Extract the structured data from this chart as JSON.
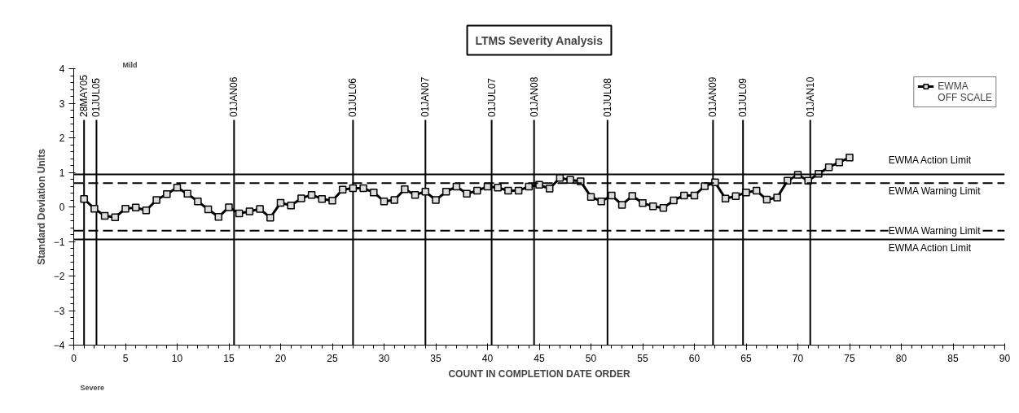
{
  "chart_data": {
    "type": "line",
    "title": "LTMS Severity Analysis",
    "xlabel": "COUNT IN COMPLETION DATE ORDER",
    "ylabel": "Standard Deviation Units",
    "xlim": [
      0,
      90
    ],
    "xticks": [
      0,
      5,
      10,
      15,
      20,
      25,
      30,
      35,
      40,
      45,
      50,
      55,
      60,
      65,
      70,
      75,
      80,
      85,
      90
    ],
    "ylim": [
      -4,
      4
    ],
    "yticks": [
      -4,
      -3,
      -2,
      -1,
      0,
      1,
      2,
      3,
      4
    ],
    "grid": false,
    "legend": "top right",
    "line_style": "solid",
    "series": [
      {
        "name": "EWMA",
        "color": "#000000",
        "marker": "square",
        "x": [
          1,
          2,
          3,
          4,
          5,
          6,
          7,
          8,
          9,
          10,
          11,
          12,
          13,
          14,
          15,
          16,
          17,
          18,
          19,
          20,
          21,
          22,
          23,
          24,
          25,
          26,
          27,
          28,
          29,
          30,
          31,
          32,
          33,
          34,
          35,
          36,
          37,
          38,
          39,
          40,
          41,
          42,
          43,
          44,
          45,
          46,
          47,
          48,
          49,
          50,
          51,
          52,
          53,
          54,
          55,
          56,
          57,
          58,
          59,
          60,
          61,
          62,
          63,
          64,
          65,
          66,
          67,
          68,
          69,
          70,
          71,
          72,
          73,
          74,
          75
        ],
        "values": [
          0.23,
          -0.05,
          -0.26,
          -0.3,
          -0.05,
          -0.02,
          -0.1,
          0.2,
          0.37,
          0.56,
          0.38,
          0.16,
          -0.07,
          -0.29,
          -0.01,
          -0.19,
          -0.13,
          -0.06,
          -0.31,
          0.12,
          0.04,
          0.25,
          0.35,
          0.23,
          0.18,
          0.5,
          0.54,
          0.54,
          0.42,
          0.16,
          0.2,
          0.51,
          0.35,
          0.44,
          0.2,
          0.44,
          0.59,
          0.38,
          0.47,
          0.59,
          0.56,
          0.47,
          0.47,
          0.59,
          0.64,
          0.53,
          0.84,
          0.78,
          0.74,
          0.29,
          0.16,
          0.33,
          0.06,
          0.32,
          0.11,
          0.02,
          -0.03,
          0.19,
          0.33,
          0.33,
          0.6,
          0.71,
          0.24,
          0.31,
          0.42,
          0.47,
          0.21,
          0.27,
          0.76,
          0.93,
          0.76,
          0.96,
          1.15,
          1.29,
          1.43
        ]
      },
      {
        "name": "OFF SCALE",
        "marker": "star"
      }
    ],
    "ref_lines": [
      {
        "axis": "y",
        "value": 0.94,
        "label": "EWMA Action Limit",
        "line_style": "solid"
      },
      {
        "axis": "y",
        "value": 0.69,
        "label": "EWMA Warning Limit",
        "line_style": "dashed"
      },
      {
        "axis": "y",
        "value": -0.69,
        "label": "EWMA Warning Limit",
        "line_style": "dashed"
      },
      {
        "axis": "y",
        "value": -0.94,
        "label": "EWMA Action Limit",
        "line_style": "solid"
      },
      {
        "axis": "x",
        "value": 1.0,
        "label": "28MAY05"
      },
      {
        "axis": "x",
        "value": 2.2,
        "label": "01JUL05"
      },
      {
        "axis": "x",
        "value": 15.5,
        "label": "01JAN06"
      },
      {
        "axis": "x",
        "value": 27.0,
        "label": "01JUL06"
      },
      {
        "axis": "x",
        "value": 34.0,
        "label": "01JAN07"
      },
      {
        "axis": "x",
        "value": 40.4,
        "label": "01JUL07"
      },
      {
        "axis": "x",
        "value": 44.5,
        "label": "01JAN08"
      },
      {
        "axis": "x",
        "value": 51.6,
        "label": "01JUL08"
      },
      {
        "axis": "x",
        "value": 61.8,
        "label": "01JAN09"
      },
      {
        "axis": "x",
        "value": 64.7,
        "label": "01JUL09"
      },
      {
        "axis": "x",
        "value": 71.2,
        "label": "01JAN10"
      }
    ],
    "annotations": [
      "Mild",
      "Severe"
    ]
  }
}
